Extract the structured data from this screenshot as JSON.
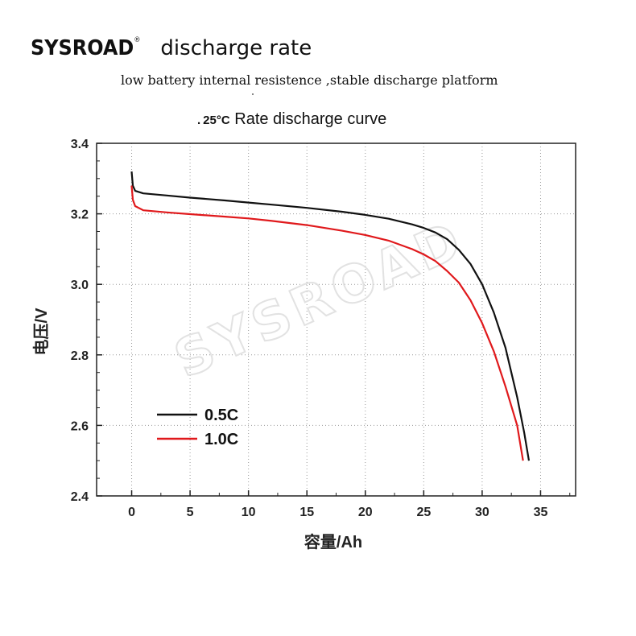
{
  "header": {
    "brand": "SYSROAD",
    "brand_mark": "®",
    "heading": "discharge rate",
    "subtitle": "low battery internal resistence ,stable discharge platform"
  },
  "chart_data": {
    "type": "line",
    "title_prefix": ".",
    "title_temp": "25°C",
    "title": "Rate discharge curve",
    "xlabel": "容量/Ah",
    "ylabel": "电压/V",
    "xlim": [
      -3,
      38
    ],
    "ylim": [
      2.4,
      3.4
    ],
    "xticks": [
      0,
      5,
      10,
      15,
      20,
      25,
      30,
      35
    ],
    "yticks": [
      2.4,
      2.6,
      2.8,
      3.0,
      3.2,
      3.4
    ],
    "ytick_labels": [
      "2.4",
      "2.6",
      "2.8",
      "3.0",
      "3.2",
      "3.4"
    ],
    "grid": true,
    "legend_position": "lower-left",
    "watermark": "SYSROAD",
    "series": [
      {
        "name": "0.5C",
        "color": "#111111",
        "points": [
          [
            0,
            3.32
          ],
          [
            0.1,
            3.28
          ],
          [
            0.3,
            3.265
          ],
          [
            1,
            3.258
          ],
          [
            3,
            3.252
          ],
          [
            5,
            3.246
          ],
          [
            8,
            3.238
          ],
          [
            10,
            3.232
          ],
          [
            12,
            3.226
          ],
          [
            15,
            3.217
          ],
          [
            18,
            3.206
          ],
          [
            20,
            3.197
          ],
          [
            22,
            3.186
          ],
          [
            24,
            3.17
          ],
          [
            25,
            3.16
          ],
          [
            26,
            3.147
          ],
          [
            27,
            3.128
          ],
          [
            28,
            3.098
          ],
          [
            29,
            3.058
          ],
          [
            30,
            3.0
          ],
          [
            31,
            2.92
          ],
          [
            32,
            2.82
          ],
          [
            33,
            2.68
          ],
          [
            33.6,
            2.58
          ],
          [
            34.0,
            2.5
          ]
        ]
      },
      {
        "name": "1.0C",
        "color": "#e0191c",
        "points": [
          [
            0,
            3.28
          ],
          [
            0.1,
            3.24
          ],
          [
            0.3,
            3.222
          ],
          [
            1,
            3.21
          ],
          [
            3,
            3.204
          ],
          [
            5,
            3.199
          ],
          [
            8,
            3.192
          ],
          [
            10,
            3.187
          ],
          [
            12,
            3.18
          ],
          [
            15,
            3.168
          ],
          [
            18,
            3.152
          ],
          [
            20,
            3.14
          ],
          [
            22,
            3.124
          ],
          [
            24,
            3.1
          ],
          [
            25,
            3.085
          ],
          [
            26,
            3.066
          ],
          [
            27,
            3.038
          ],
          [
            28,
            3.005
          ],
          [
            29,
            2.955
          ],
          [
            30,
            2.89
          ],
          [
            31,
            2.81
          ],
          [
            32,
            2.71
          ],
          [
            33.0,
            2.6
          ],
          [
            33.5,
            2.5
          ]
        ]
      }
    ]
  }
}
